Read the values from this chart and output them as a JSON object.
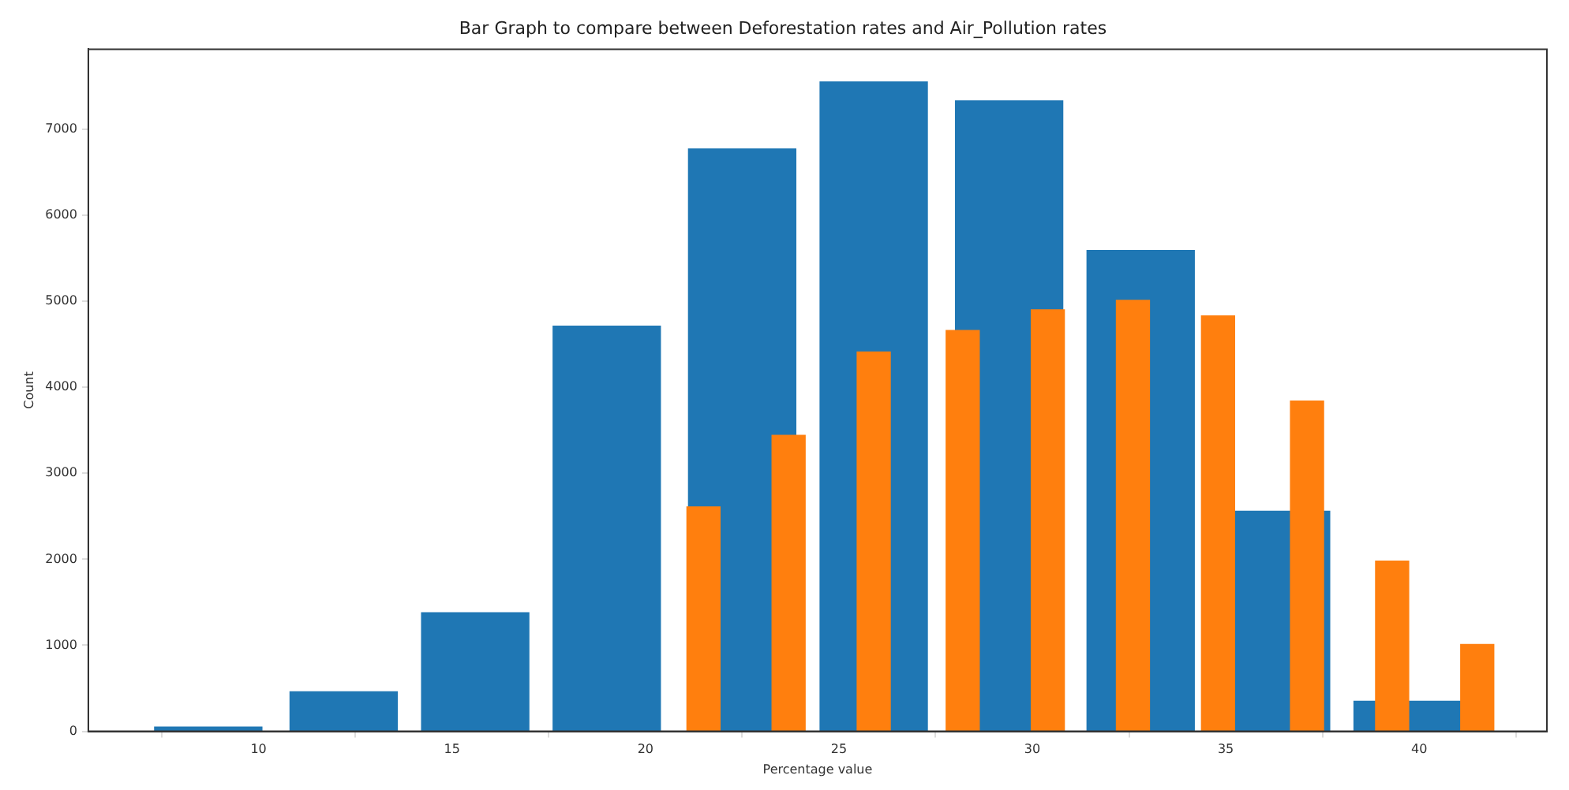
{
  "chart_data": {
    "type": "bar",
    "title": "Bar Graph to compare between Deforestation rates and Air_Pollution rates",
    "xlabel": "Percentage value",
    "ylabel": "Count",
    "xlim": [
      5.6,
      43.3
    ],
    "xticks": [
      10,
      15,
      20,
      25,
      30,
      35,
      40
    ],
    "ylim": [
      0,
      7930
    ],
    "yticks": [
      0,
      1000,
      2000,
      3000,
      4000,
      5000,
      6000,
      7000
    ],
    "grid": false,
    "legend": false,
    "series": [
      {
        "color": "#1f77b4",
        "x": [
          8.7,
          12.2,
          15.6,
          19.0,
          22.5,
          25.9,
          29.4,
          32.8,
          36.3,
          39.7
        ],
        "values": [
          50,
          460,
          1380,
          4710,
          6770,
          7550,
          7330,
          5590,
          2560,
          350
        ]
      },
      {
        "color": "#ff7f0e",
        "x": [
          21.5,
          23.7,
          25.9,
          28.2,
          30.4,
          32.6,
          34.8,
          37.1,
          39.3,
          41.5
        ],
        "values": [
          2610,
          3440,
          4410,
          4660,
          4900,
          5010,
          4830,
          3840,
          1980,
          1010
        ]
      }
    ]
  }
}
